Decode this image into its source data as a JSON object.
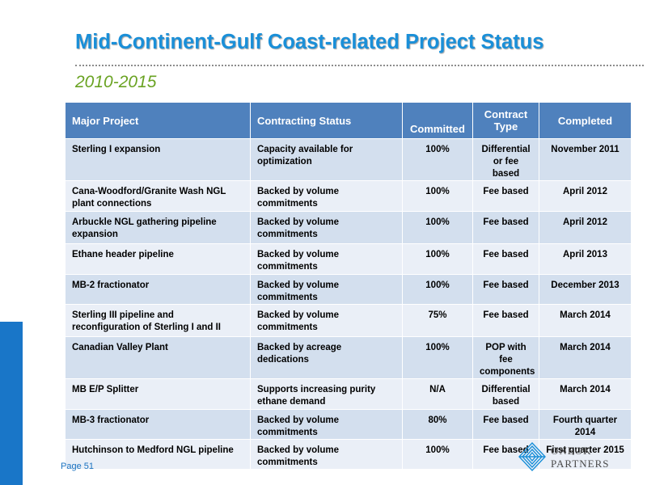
{
  "header": {
    "title": "Mid-Continent-Gulf Coast-related Project Status",
    "subtitle": "2010-2015"
  },
  "table": {
    "columns": [
      "Major Project",
      "Contracting Status",
      "Committed",
      "Contract Type",
      "Completed"
    ],
    "rows": [
      {
        "project": "Sterling I expansion",
        "status": "Capacity available for optimization",
        "committed": "100%",
        "type": "Differential or fee based",
        "completed": "November 2011"
      },
      {
        "project": "Cana-Woodford/Granite Wash NGL plant connections",
        "status": "Backed by volume commitments",
        "committed": "100%",
        "type": "Fee based",
        "completed": "April 2012"
      },
      {
        "project": "Arbuckle NGL gathering pipeline expansion",
        "status": "Backed by volume commitments",
        "committed": "100%",
        "type": "Fee based",
        "completed": "April 2012"
      },
      {
        "project": "Ethane header pipeline",
        "status": "Backed by volume commitments",
        "committed": "100%",
        "type": "Fee based",
        "completed": "April 2013"
      },
      {
        "project": "MB-2 fractionator",
        "status": "Backed by volume commitments",
        "committed": "100%",
        "type": "Fee based",
        "completed": "December 2013"
      },
      {
        "project": "Sterling III pipeline and reconfiguration of Sterling I and II",
        "status": "Backed by volume commitments",
        "committed": "75%",
        "type": "Fee based",
        "completed": "March 2014"
      },
      {
        "project": "Canadian Valley Plant",
        "status": "Backed by acreage dedications",
        "committed": "100%",
        "type": "POP with fee components",
        "completed": "March 2014"
      },
      {
        "project": "MB E/P Splitter",
        "status": "Supports increasing purity ethane demand",
        "committed": "N/A",
        "type": "Differential based",
        "completed": "March 2014"
      },
      {
        "project": "MB-3 fractionator",
        "status": "Backed by volume commitments",
        "committed": "80%",
        "type": "Fee based",
        "completed": "Fourth quarter 2014"
      },
      {
        "project": "Hutchinson to Medford NGL pipeline",
        "status": "Backed by volume commitments",
        "committed": "100%",
        "type": "Fee based",
        "completed": "First quarter 2015"
      }
    ]
  },
  "footer": {
    "page_label": "Page 51",
    "logo_line1": "ONEOK",
    "logo_line2": "PARTNERS"
  },
  "colors": {
    "title": "#1a8fd8",
    "subtitle": "#6aa323",
    "header_bg": "#4f81bd",
    "row_odd": "#d3dfee",
    "row_even": "#eaeff7",
    "side_bar": "#1976c8"
  },
  "icons": {
    "logo": "oneok-logo-icon"
  }
}
